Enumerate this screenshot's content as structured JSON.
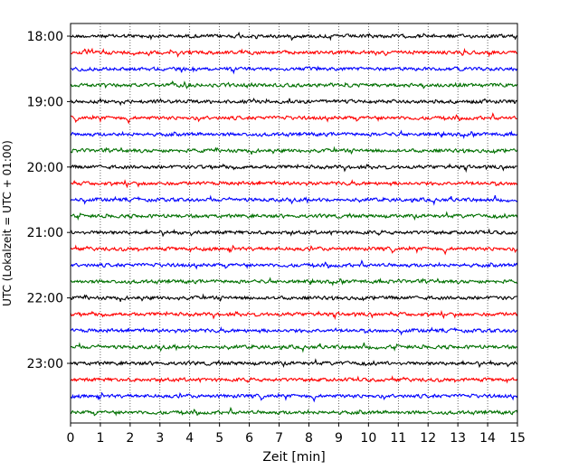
{
  "chart_data": {
    "type": "line",
    "title": "",
    "xlabel": "Zeit  [min]",
    "ylabel": "UTC (Lokalzeit = UTC + 01:00)",
    "xlim": [
      0,
      15
    ],
    "x_ticks": [
      0,
      1,
      2,
      3,
      4,
      5,
      6,
      7,
      8,
      9,
      10,
      11,
      12,
      13,
      14,
      15
    ],
    "x_tick_labels": [
      "0",
      "1",
      "2",
      "3",
      "4",
      "5",
      "6",
      "7",
      "8",
      "9",
      "10",
      "11",
      "12",
      "13",
      "14",
      "15"
    ],
    "y_tick_labels": [
      "18:00",
      "19:00",
      "20:00",
      "21:00",
      "22:00",
      "23:00"
    ],
    "grid": "vertical dotted lines at each minute",
    "legend": "none",
    "trace_minutes": 15,
    "trace_colors": [
      "#000000",
      "#ff0000",
      "#0000ff",
      "#007000"
    ],
    "series": [
      {
        "start": "18:00",
        "color": "#000000"
      },
      {
        "start": "18:15",
        "color": "#ff0000"
      },
      {
        "start": "18:30",
        "color": "#0000ff"
      },
      {
        "start": "18:45",
        "color": "#007000"
      },
      {
        "start": "19:00",
        "color": "#000000"
      },
      {
        "start": "19:15",
        "color": "#ff0000"
      },
      {
        "start": "19:30",
        "color": "#0000ff"
      },
      {
        "start": "19:45",
        "color": "#007000"
      },
      {
        "start": "20:00",
        "color": "#000000"
      },
      {
        "start": "20:15",
        "color": "#ff0000"
      },
      {
        "start": "20:30",
        "color": "#0000ff"
      },
      {
        "start": "20:45",
        "color": "#007000"
      },
      {
        "start": "21:00",
        "color": "#000000"
      },
      {
        "start": "21:15",
        "color": "#ff0000"
      },
      {
        "start": "21:30",
        "color": "#0000ff"
      },
      {
        "start": "21:45",
        "color": "#007000"
      },
      {
        "start": "22:00",
        "color": "#000000"
      },
      {
        "start": "22:15",
        "color": "#ff0000"
      },
      {
        "start": "22:30",
        "color": "#0000ff"
      },
      {
        "start": "22:45",
        "color": "#007000"
      },
      {
        "start": "23:00",
        "color": "#000000"
      },
      {
        "start": "23:15",
        "color": "#ff0000"
      },
      {
        "start": "23:30",
        "color": "#0000ff"
      },
      {
        "start": "23:45",
        "color": "#007000"
      }
    ]
  }
}
